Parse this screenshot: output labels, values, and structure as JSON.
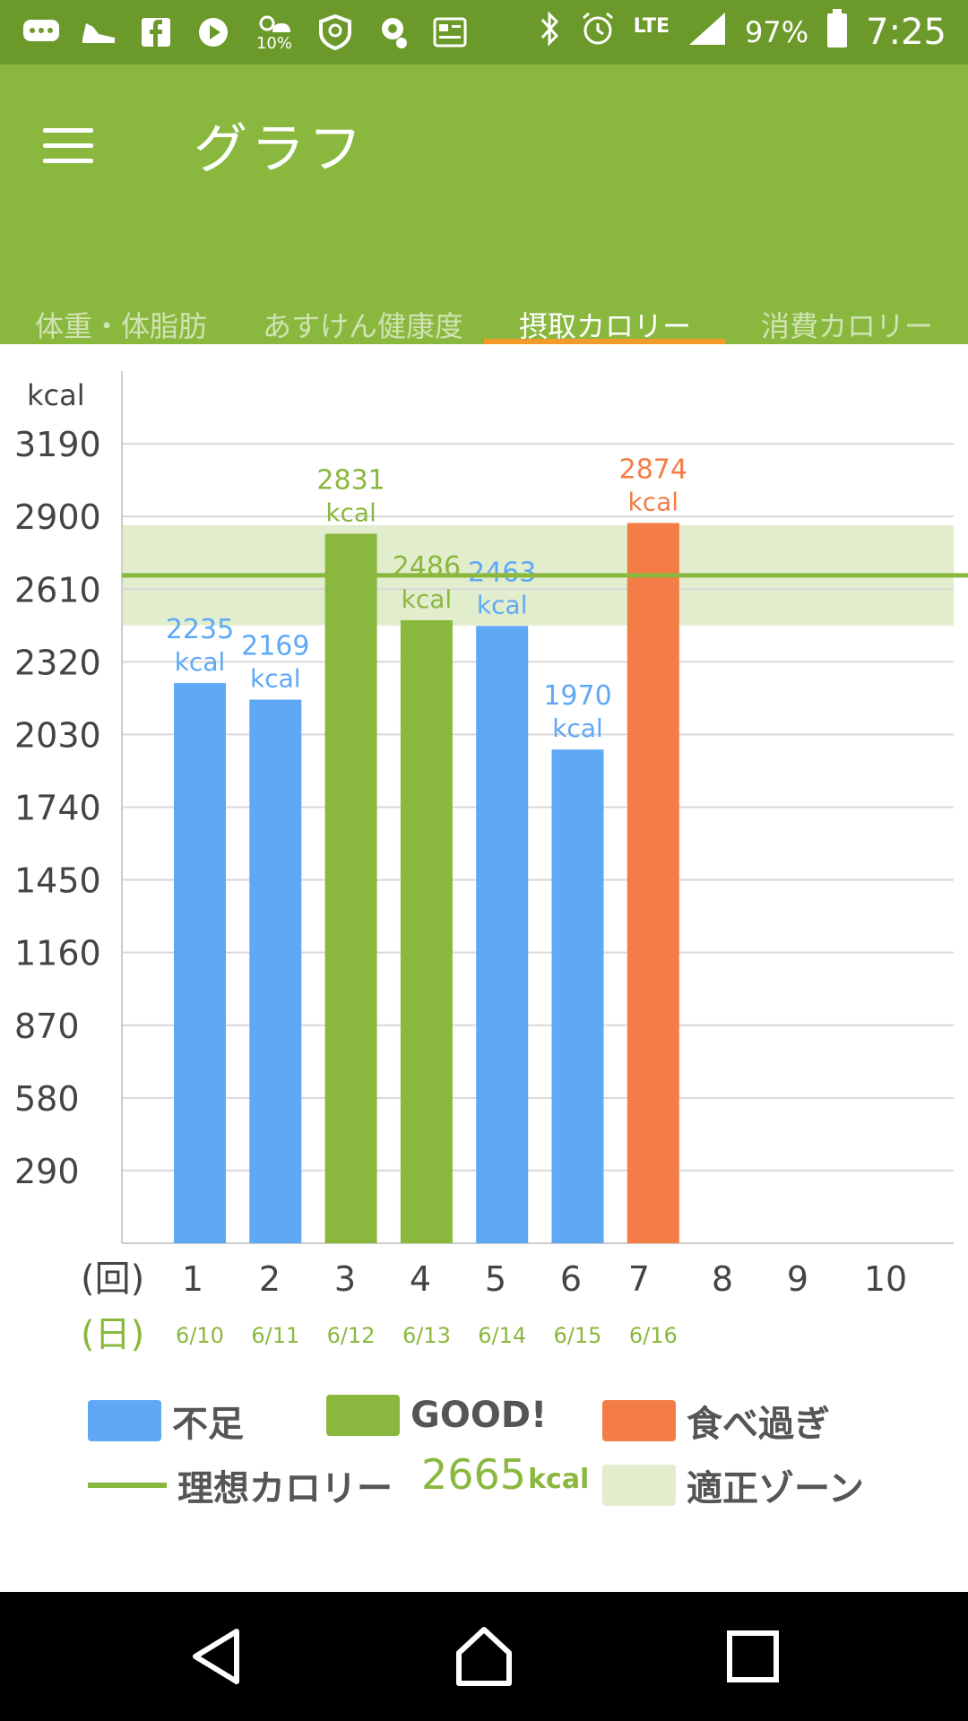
{
  "status_bar": {
    "lte": "LTE",
    "battery": "97%",
    "time": "7:25",
    "weather_pct": "10%",
    "left_icons": [
      "chat-icon",
      "shoe-icon",
      "facebook-icon",
      "play-icon",
      "weather-icon",
      "shield-icon",
      "headset-icon",
      "news-icon"
    ],
    "right_icons": [
      "bluetooth-icon",
      "alarm-icon",
      "signal-icon",
      "battery-icon"
    ]
  },
  "app_bar": {
    "title": "グラフ"
  },
  "tabs": [
    {
      "line1": "体重・",
      "line2": "体脂肪",
      "active": false
    },
    {
      "line1": "あすけん",
      "line2": "健康度",
      "active": false
    },
    {
      "line1": "摂取",
      "line2": "カロリー",
      "active": true
    },
    {
      "line1": "消費",
      "line2": "カロリー",
      "active": false
    }
  ],
  "chart_data": {
    "type": "bar",
    "ylabel": "kcal",
    "yticks": [
      "3190",
      "2900",
      "2610",
      "2320",
      "2030",
      "1740",
      "1450",
      "1160",
      "870",
      "580",
      "290"
    ],
    "ylim": [
      0,
      3480
    ],
    "x_axis_label": "(回)",
    "date_axis_label": "(日)",
    "categories": [
      "1",
      "2",
      "3",
      "4",
      "5",
      "6",
      "7",
      "8",
      "9",
      "10"
    ],
    "dates": [
      "6/10",
      "6/11",
      "6/12",
      "6/13",
      "6/14",
      "6/15",
      "6/16",
      "",
      "",
      ""
    ],
    "values": [
      2235,
      2169,
      2831,
      2486,
      2463,
      1970,
      2874,
      null,
      null,
      null
    ],
    "status": [
      "short",
      "short",
      "good",
      "good",
      "short",
      "short",
      "over",
      null,
      null,
      null
    ],
    "value_unit": "kcal",
    "ideal_line": 2665,
    "proper_zone": [
      2465,
      2865
    ],
    "grid": true,
    "colors": {
      "short": "#5ea8f5",
      "good": "#8ab83f",
      "over": "#f47c47",
      "zone": "#e1edcd",
      "ideal": "#8ab83f",
      "date": "#8ab83f"
    }
  },
  "legend": {
    "short_label": "不足",
    "good_label": "GOOD!",
    "over_label": "食べ過ぎ",
    "ideal_label": "理想カロリー",
    "ideal_value": "2665",
    "ideal_unit": "kcal",
    "zone_label": "適正ゾーン"
  },
  "nav_bar": {
    "buttons": [
      "back-icon",
      "home-icon",
      "recents-icon"
    ]
  }
}
